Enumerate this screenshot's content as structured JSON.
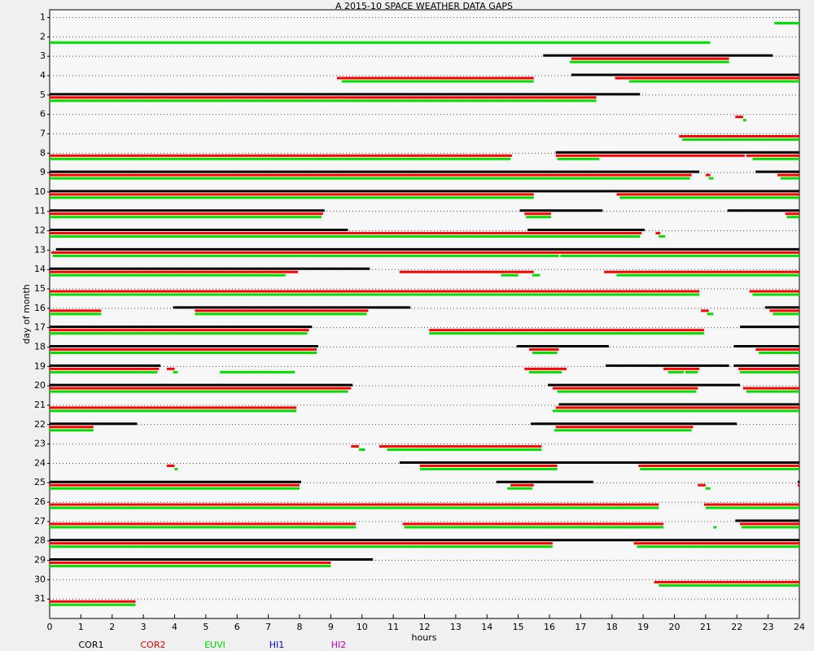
{
  "chart_data": {
    "type": "timeline",
    "title": "A  2015-10 SPACE WEATHER DATA GAPS",
    "x_label": "hours",
    "y_label": "day of month",
    "xlim": [
      0,
      24
    ],
    "xticks": [
      0,
      1,
      2,
      3,
      4,
      5,
      6,
      7,
      8,
      9,
      10,
      11,
      12,
      13,
      14,
      15,
      16,
      17,
      18,
      19,
      20,
      21,
      22,
      23,
      24
    ],
    "ylim": [
      32,
      0.6
    ],
    "yticks": [
      1,
      2,
      3,
      4,
      5,
      6,
      7,
      8,
      9,
      10,
      11,
      12,
      13,
      14,
      15,
      16,
      17,
      18,
      19,
      20,
      21,
      22,
      23,
      24,
      25,
      26,
      27,
      28,
      29,
      30,
      31
    ],
    "grid": true,
    "series": [
      {
        "name": "COR1",
        "color": "#000000",
        "gaps": [
          [
            3,
            15.8,
            23.15
          ],
          [
            4,
            16.7,
            24
          ],
          [
            5,
            0,
            18.9
          ],
          [
            8,
            16.2,
            24
          ],
          [
            9,
            0,
            20.8
          ],
          [
            9,
            22.6,
            24
          ],
          [
            10,
            0,
            24
          ],
          [
            11,
            0,
            8.8
          ],
          [
            11,
            15.05,
            17.7
          ],
          [
            11,
            21.7,
            24
          ],
          [
            12,
            0,
            9.55
          ],
          [
            12,
            15.3,
            19.05
          ],
          [
            13,
            0.2,
            24
          ],
          [
            14,
            0,
            10.25
          ],
          [
            16,
            3.95,
            11.55
          ],
          [
            16,
            22.9,
            24
          ],
          [
            17,
            0,
            8.4
          ],
          [
            17,
            22.1,
            24
          ],
          [
            18,
            0,
            8.6
          ],
          [
            18,
            14.95,
            17.9
          ],
          [
            18,
            21.9,
            24
          ],
          [
            19,
            0,
            3.55
          ],
          [
            19,
            17.8,
            21.75
          ],
          [
            19,
            21.9,
            24
          ],
          [
            20,
            0,
            9.7
          ],
          [
            20,
            15.95,
            22.1
          ],
          [
            21,
            16.3,
            24
          ],
          [
            22,
            0,
            2.8
          ],
          [
            22,
            15.4,
            22
          ],
          [
            24,
            11.2,
            24
          ],
          [
            25,
            0,
            8.05
          ],
          [
            25,
            14.3,
            17.4
          ],
          [
            25,
            23.95,
            24
          ],
          [
            27,
            21.95,
            24
          ],
          [
            28,
            0,
            24
          ],
          [
            29,
            0,
            10.35
          ]
        ]
      },
      {
        "name": "COR2",
        "color": "#ff0000",
        "gaps": [
          [
            3,
            16.7,
            21.75
          ],
          [
            4,
            9.2,
            15.5
          ],
          [
            4,
            18.1,
            24
          ],
          [
            5,
            0,
            17.5
          ],
          [
            6,
            21.95,
            22.2
          ],
          [
            7,
            20.15,
            24
          ],
          [
            8,
            0,
            14.8
          ],
          [
            8,
            16.2,
            22.25
          ],
          [
            8,
            22.3,
            24
          ],
          [
            9,
            0,
            20.55
          ],
          [
            9,
            21,
            21.15
          ],
          [
            9,
            23.3,
            24
          ],
          [
            10,
            0,
            15.5
          ],
          [
            10,
            18.15,
            24
          ],
          [
            11,
            0,
            8.75
          ],
          [
            11,
            15.2,
            16.05
          ],
          [
            11,
            23.55,
            24
          ],
          [
            12,
            0,
            18.95
          ],
          [
            12,
            19.4,
            19.55
          ],
          [
            13,
            0.05,
            24
          ],
          [
            14,
            0,
            7.95
          ],
          [
            14,
            11.2,
            15.5
          ],
          [
            14,
            17.75,
            24
          ],
          [
            15,
            0,
            20.8
          ],
          [
            15,
            22.4,
            24
          ],
          [
            16,
            0,
            1.65
          ],
          [
            16,
            4.65,
            10.2
          ],
          [
            16,
            20.85,
            21.1
          ],
          [
            16,
            23.05,
            24
          ],
          [
            17,
            0,
            8.3
          ],
          [
            17,
            12.15,
            20.95
          ],
          [
            18,
            0,
            8.55
          ],
          [
            18,
            15.35,
            16.3
          ],
          [
            18,
            22.6,
            24
          ],
          [
            19,
            0,
            3.5
          ],
          [
            19,
            3.75,
            4.0
          ],
          [
            19,
            15.2,
            16.55
          ],
          [
            19,
            19.65,
            20.8
          ],
          [
            19,
            22.05,
            24
          ],
          [
            20,
            0,
            9.65
          ],
          [
            20,
            16.1,
            20.75
          ],
          [
            20,
            22.2,
            24
          ],
          [
            21,
            0,
            7.9
          ],
          [
            21,
            16.2,
            24
          ],
          [
            22,
            0,
            1.4
          ],
          [
            22,
            16.2,
            20.6
          ],
          [
            23,
            9.65,
            9.9
          ],
          [
            23,
            10.55,
            15.75
          ],
          [
            24,
            3.75,
            4.0
          ],
          [
            24,
            11.85,
            16.25
          ],
          [
            24,
            18.85,
            24
          ],
          [
            25,
            0,
            8.0
          ],
          [
            25,
            14.75,
            15.5
          ],
          [
            25,
            20.75,
            21.0
          ],
          [
            25,
            23.95,
            24
          ],
          [
            26,
            0,
            19.5
          ],
          [
            26,
            20.95,
            24
          ],
          [
            27,
            0,
            9.8
          ],
          [
            27,
            11.3,
            19.65
          ],
          [
            27,
            22.1,
            24
          ],
          [
            28,
            0,
            16.1
          ],
          [
            28,
            18.7,
            24
          ],
          [
            29,
            0,
            9.0
          ],
          [
            30,
            19.35,
            24
          ],
          [
            31,
            0,
            2.75
          ]
        ]
      },
      {
        "name": "EUVI",
        "color": "#00e000",
        "gaps": [
          [
            1,
            23.2,
            24
          ],
          [
            2,
            0,
            21.15
          ],
          [
            3,
            16.65,
            21.75
          ],
          [
            4,
            9.35,
            15.5
          ],
          [
            4,
            18.55,
            24
          ],
          [
            5,
            0,
            17.5
          ],
          [
            6,
            22.2,
            22.3
          ],
          [
            7,
            20.25,
            24
          ],
          [
            8,
            0,
            14.75
          ],
          [
            8,
            16.25,
            17.6
          ],
          [
            8,
            22.5,
            24
          ],
          [
            9,
            0,
            20.5
          ],
          [
            9,
            21.1,
            21.25
          ],
          [
            9,
            23.4,
            24
          ],
          [
            10,
            0,
            15.5
          ],
          [
            10,
            18.25,
            24
          ],
          [
            11,
            0,
            8.7
          ],
          [
            11,
            15.25,
            16.05
          ],
          [
            11,
            23.6,
            24
          ],
          [
            12,
            0,
            18.9
          ],
          [
            12,
            19.5,
            19.7
          ],
          [
            13,
            0.1,
            16.3
          ],
          [
            13,
            16.35,
            24
          ],
          [
            14,
            0,
            7.55
          ],
          [
            14,
            14.45,
            15
          ],
          [
            14,
            15.45,
            15.7
          ],
          [
            14,
            18.15,
            24
          ],
          [
            15,
            0,
            20.8
          ],
          [
            15,
            22.5,
            24
          ],
          [
            16,
            0,
            1.65
          ],
          [
            16,
            4.65,
            10.15
          ],
          [
            16,
            21.05,
            21.25
          ],
          [
            16,
            23.15,
            24
          ],
          [
            17,
            0,
            8.25
          ],
          [
            17,
            12.15,
            20.95
          ],
          [
            18,
            0,
            8.55
          ],
          [
            18,
            15.45,
            16.25
          ],
          [
            18,
            22.7,
            24
          ],
          [
            19,
            0,
            3.45
          ],
          [
            19,
            3.95,
            4.1
          ],
          [
            19,
            5.45,
            7.85
          ],
          [
            19,
            15.35,
            16.4
          ],
          [
            19,
            19.8,
            20.3
          ],
          [
            19,
            20.35,
            20.75
          ],
          [
            19,
            22.1,
            24
          ],
          [
            20,
            0,
            9.55
          ],
          [
            20,
            16.25,
            20.7
          ],
          [
            20,
            22.3,
            24
          ],
          [
            21,
            0,
            7.9
          ],
          [
            21,
            16.1,
            24
          ],
          [
            22,
            0,
            1.4
          ],
          [
            22,
            16.15,
            20.55
          ],
          [
            23,
            9.9,
            10.1
          ],
          [
            23,
            10.8,
            15.75
          ],
          [
            24,
            4.0,
            4.1
          ],
          [
            24,
            11.85,
            16.25
          ],
          [
            24,
            18.9,
            24
          ],
          [
            25,
            0,
            8.0
          ],
          [
            25,
            14.65,
            15.45
          ],
          [
            25,
            21.0,
            21.15
          ],
          [
            26,
            0,
            19.5
          ],
          [
            26,
            21.0,
            24
          ],
          [
            27,
            0,
            9.8
          ],
          [
            27,
            11.35,
            19.65
          ],
          [
            27,
            21.25,
            21.35
          ],
          [
            27,
            22.15,
            24
          ],
          [
            28,
            0,
            16.1
          ],
          [
            28,
            18.8,
            24
          ],
          [
            29,
            0,
            9.0
          ],
          [
            30,
            19.5,
            24
          ],
          [
            31,
            0,
            2.75
          ]
        ]
      },
      {
        "name": "HI1",
        "color": "#0000ff",
        "gaps": []
      },
      {
        "name": "HI2",
        "color": "#c000c0",
        "gaps": []
      }
    ]
  }
}
